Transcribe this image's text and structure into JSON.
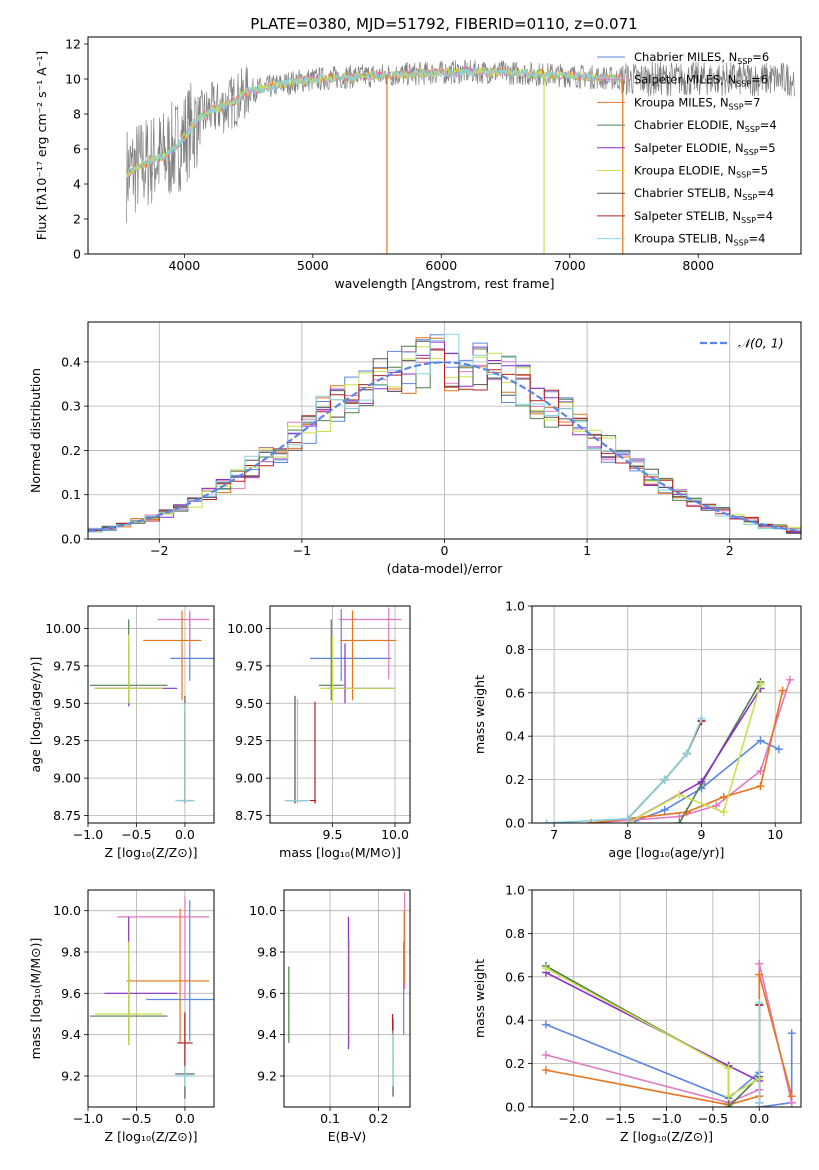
{
  "figure": {
    "title": "PLATE=0380, MJD=51792, FIBERID=0110, z=0.071"
  },
  "colors": {
    "Chabrier MILES": "#5b86e5",
    "Salpeter MILES": "#e377c2",
    "Kroupa MILES": "#e8731a",
    "Chabrier ELODIE": "#4f7f4f",
    "Salpeter ELODIE": "#8b2fc9",
    "Kroupa ELODIE": "#c9e04c",
    "Chabrier STELIB": "#555555",
    "Salpeter STELIB": "#b22222",
    "Kroupa STELIB": "#86d3de",
    "data": "#808080",
    "gaussian": "#5b86e5"
  },
  "chart_data": [
    {
      "id": "spectrum",
      "type": "line",
      "title": "PLATE=0380, MJD=51792, FIBERID=0110, z=0.071",
      "xlabel": "wavelength [Angstrom, rest frame]",
      "ylabel": "Flux [fλ10⁻¹⁷ erg cm⁻² s⁻¹ A⁻¹]",
      "xlim": [
        3250,
        8800
      ],
      "ylim": [
        0,
        12.4
      ],
      "xticks": [
        4000,
        5000,
        6000,
        7000,
        8000
      ],
      "yticks": [
        0,
        2,
        4,
        6,
        8,
        10,
        12
      ],
      "legend_position": "right",
      "legend": [
        {
          "label": "Chabrier MILES, N",
          "sub": "SSP",
          "suffix": "=6"
        },
        {
          "label": "Salpeter MILES, N",
          "sub": "SSP",
          "suffix": "=6"
        },
        {
          "label": "Kroupa MILES, N",
          "sub": "SSP",
          "suffix": "=7"
        },
        {
          "label": "Chabrier ELODIE, N",
          "sub": "SSP",
          "suffix": "=4"
        },
        {
          "label": "Salpeter ELODIE, N",
          "sub": "SSP",
          "suffix": "=5"
        },
        {
          "label": "Kroupa ELODIE, N",
          "sub": "SSP",
          "suffix": "=5"
        },
        {
          "label": "Chabrier STELIB, N",
          "sub": "SSP",
          "suffix": "=4"
        },
        {
          "label": "Salpeter STELIB, N",
          "sub": "SSP",
          "suffix": "=4"
        },
        {
          "label": "Kroupa STELIB, N",
          "sub": "SSP",
          "suffix": "=4"
        }
      ],
      "continuum": [
        [
          3550,
          4.6
        ],
        [
          3650,
          5.0
        ],
        [
          3750,
          5.4
        ],
        [
          3850,
          5.6
        ],
        [
          3950,
          6.2
        ],
        [
          4000,
          6.7
        ],
        [
          4100,
          7.6
        ],
        [
          4200,
          8.2
        ],
        [
          4300,
          8.4
        ],
        [
          4400,
          8.8
        ],
        [
          4500,
          9.3
        ],
        [
          4700,
          9.6
        ],
        [
          4900,
          9.9
        ],
        [
          5200,
          10.1
        ],
        [
          5500,
          10.2
        ],
        [
          5800,
          10.3
        ],
        [
          6100,
          10.4
        ],
        [
          6400,
          10.4
        ],
        [
          6700,
          10.3
        ],
        [
          7000,
          10.2
        ],
        [
          7200,
          10.1
        ],
        [
          7400,
          10.0
        ]
      ],
      "spikes": [
        [
          5577,
          0
        ],
        [
          7413,
          0
        ],
        [
          6800,
          0
        ]
      ]
    },
    {
      "id": "residuals",
      "type": "histogram",
      "xlabel": "(data-model)/error",
      "ylabel": "Normed distribution",
      "xlim": [
        -2.5,
        2.5
      ],
      "ylim": [
        0,
        0.49
      ],
      "xticks": [
        -2,
        -1,
        0,
        1,
        2
      ],
      "yticks": [
        0.0,
        0.1,
        0.2,
        0.3,
        0.4
      ],
      "legend_label": "𝒩(0, 1)",
      "legend_position": "top-right",
      "bin_width": 0.1,
      "bins_start": -2.5,
      "gaussian": {
        "mean": 0,
        "sigma": 1
      }
    },
    {
      "id": "age_vs_Z",
      "type": "errorbar",
      "xlabel": "Z [log₁₀(Z/Z⊙)]",
      "ylabel": "age  [log₁₀(age/yr)]",
      "xlim": [
        -1.0,
        0.3
      ],
      "ylim": [
        8.7,
        10.15
      ],
      "xticks": [
        -1.0,
        -0.5,
        0.0
      ],
      "yticks": [
        8.75,
        9.0,
        9.25,
        9.5,
        9.75,
        10.0
      ],
      "points": [
        {
          "model": "Chabrier MILES",
          "x": 0.05,
          "y": 9.8,
          "xerr": [
            0.2,
            0.25
          ],
          "yerr": [
            0.15,
            0.3
          ]
        },
        {
          "model": "Salpeter MILES",
          "x": 0.05,
          "y": 10.06,
          "xerr": [
            0.33,
            0.2
          ],
          "yerr": [
            0.2,
            0.06
          ]
        },
        {
          "model": "Kroupa MILES",
          "x": -0.03,
          "y": 9.92,
          "xerr": [
            0.4,
            0.2
          ],
          "yerr": [
            0.4,
            0.2
          ]
        },
        {
          "model": "Chabrier ELODIE",
          "x": -0.58,
          "y": 9.62,
          "xerr": [
            0.4,
            0.4
          ],
          "yerr": [
            0.12,
            0.44
          ]
        },
        {
          "model": "Salpeter ELODIE",
          "x": -0.58,
          "y": 9.6,
          "xerr": [
            0.35,
            0.5
          ],
          "yerr": [
            0.12,
            0.3
          ]
        },
        {
          "model": "Kroupa ELODIE",
          "x": -0.58,
          "y": 9.6,
          "xerr": [
            0.35,
            0.35
          ],
          "yerr": [
            0.1,
            0.36
          ]
        },
        {
          "model": "Chabrier STELIB",
          "x": 0.0,
          "y": 8.85,
          "xerr": [
            0.08,
            0.08
          ],
          "yerr": [
            0.02,
            0.7
          ]
        },
        {
          "model": "Salpeter STELIB",
          "x": 0.0,
          "y": 8.85,
          "xerr": [
            0.05,
            0.05
          ],
          "yerr": [
            0.02,
            0.6
          ]
        },
        {
          "model": "Kroupa STELIB",
          "x": 0.0,
          "y": 8.85,
          "xerr": [
            0.1,
            0.1
          ],
          "yerr": [
            0.02,
            0.65
          ]
        }
      ]
    },
    {
      "id": "age_vs_mass",
      "type": "errorbar",
      "xlabel": "mass [log₁₀(M/M⊙)]",
      "ylabel": "",
      "xlim": [
        9.0,
        10.12
      ],
      "ylim": [
        8.7,
        10.15
      ],
      "xticks": [
        9.5,
        10.0
      ],
      "yticks": [
        8.75,
        9.0,
        9.25,
        9.5,
        9.75,
        10.0
      ],
      "points": [
        {
          "model": "Chabrier MILES",
          "x": 9.57,
          "y": 9.8,
          "xerr": [
            0.25,
            0.4
          ],
          "yerr": [
            0.15,
            0.33
          ]
        },
        {
          "model": "Salpeter MILES",
          "x": 9.95,
          "y": 10.06,
          "xerr": [
            0.4,
            0.1
          ],
          "yerr": [
            0.4,
            0.08
          ]
        },
        {
          "model": "Kroupa MILES",
          "x": 9.66,
          "y": 9.92,
          "xerr": [
            0.1,
            0.35
          ],
          "yerr": [
            0.4,
            0.2
          ]
        },
        {
          "model": "Chabrier ELODIE",
          "x": 9.49,
          "y": 9.62,
          "xerr": [
            0.1,
            0.1
          ],
          "yerr": [
            0.1,
            0.44
          ]
        },
        {
          "model": "Salpeter ELODIE",
          "x": 9.6,
          "y": 9.6,
          "xerr": [
            0.15,
            0.4
          ],
          "yerr": [
            0.1,
            0.3
          ]
        },
        {
          "model": "Kroupa ELODIE",
          "x": 9.5,
          "y": 9.6,
          "xerr": [
            0.1,
            0.5
          ],
          "yerr": [
            0.1,
            0.35
          ]
        },
        {
          "model": "Chabrier STELIB",
          "x": 9.2,
          "y": 8.85,
          "xerr": [
            0.08,
            0.08
          ],
          "yerr": [
            0.02,
            0.7
          ]
        },
        {
          "model": "Salpeter STELIB",
          "x": 9.36,
          "y": 8.85,
          "xerr": [
            0.2,
            0.01
          ],
          "yerr": [
            0.02,
            0.66
          ]
        },
        {
          "model": "Kroupa STELIB",
          "x": 9.22,
          "y": 8.85,
          "xerr": [
            0.1,
            0.1
          ],
          "yerr": [
            0.02,
            0.68
          ]
        }
      ]
    },
    {
      "id": "mass_weight_vs_age",
      "type": "line",
      "xlabel": "age  [log₁₀(age/yr)]",
      "ylabel": "mass weight",
      "xlim": [
        6.7,
        10.35
      ],
      "ylim": [
        0,
        1.0
      ],
      "xticks": [
        7,
        8,
        9,
        10
      ],
      "yticks": [
        0.0,
        0.2,
        0.4,
        0.6,
        0.8,
        1.0
      ],
      "grid": true,
      "series": [
        {
          "model": "Chabrier MILES",
          "x": [
            8.1,
            8.5,
            9.0,
            9.8,
            10.05
          ],
          "y": [
            0.01,
            0.06,
            0.16,
            0.38,
            0.34
          ]
        },
        {
          "model": "Salpeter MILES",
          "x": [
            7.5,
            8.7,
            9.2,
            9.8,
            10.2
          ],
          "y": [
            0.0,
            0.03,
            0.08,
            0.24,
            0.66
          ]
        },
        {
          "model": "Kroupa MILES",
          "x": [
            7.5,
            8.0,
            8.8,
            9.3,
            9.8,
            10.1
          ],
          "y": [
            0.0,
            0.02,
            0.05,
            0.12,
            0.17,
            0.61
          ]
        },
        {
          "model": "Chabrier ELODIE",
          "x": [
            8.7,
            9.0,
            9.8
          ],
          "y": [
            0.0,
            0.18,
            0.65
          ]
        },
        {
          "model": "Salpeter ELODIE",
          "x": [
            8.0,
            9.0,
            9.8
          ],
          "y": [
            0.0,
            0.19,
            0.62
          ]
        },
        {
          "model": "Kroupa ELODIE",
          "x": [
            8.0,
            8.7,
            9.3,
            9.8
          ],
          "y": [
            0.0,
            0.13,
            0.05,
            0.64
          ]
        },
        {
          "model": "Chabrier STELIB",
          "x": [
            8.0,
            8.5,
            8.8,
            9.0
          ],
          "y": [
            0.02,
            0.2,
            0.32,
            0.47
          ]
        },
        {
          "model": "Salpeter STELIB",
          "x": [
            8.0,
            8.5,
            8.8,
            9.0
          ],
          "y": [
            0.02,
            0.2,
            0.32,
            0.47
          ]
        },
        {
          "model": "Kroupa STELIB",
          "x": [
            6.9,
            8.0,
            8.5,
            8.8,
            9.0
          ],
          "y": [
            0.0,
            0.02,
            0.2,
            0.32,
            0.48
          ]
        }
      ]
    },
    {
      "id": "mass_vs_Z",
      "type": "errorbar",
      "xlabel": "Z [log₁₀(Z/Z⊙)]",
      "ylabel": "mass [log₁₀(M/M⊙)]",
      "xlim": [
        -1.0,
        0.3
      ],
      "ylim": [
        9.05,
        10.1
      ],
      "xticks": [
        -1.0,
        -0.5,
        0.0
      ],
      "yticks": [
        9.2,
        9.4,
        9.6,
        9.8,
        10.0
      ],
      "points": [
        {
          "model": "Chabrier MILES",
          "x": 0.05,
          "y": 9.57,
          "xerr": [
            0.45,
            0.25
          ],
          "yerr": [
            0.2,
            0.48
          ]
        },
        {
          "model": "Salpeter MILES",
          "x": 0.0,
          "y": 9.97,
          "xerr": [
            0.7,
            0.25
          ],
          "yerr": [
            0.4,
            0.1
          ]
        },
        {
          "model": "Kroupa MILES",
          "x": -0.05,
          "y": 9.66,
          "xerr": [
            0.55,
            0.3
          ],
          "yerr": [
            0.3,
            0.35
          ]
        },
        {
          "model": "Chabrier ELODIE",
          "x": -0.58,
          "y": 9.49,
          "xerr": [
            0.4,
            0.4
          ],
          "yerr": [
            0.12,
            0.25
          ]
        },
        {
          "model": "Salpeter ELODIE",
          "x": -0.58,
          "y": 9.6,
          "xerr": [
            0.25,
            0.5
          ],
          "yerr": [
            0.25,
            0.37
          ]
        },
        {
          "model": "Kroupa ELODIE",
          "x": -0.58,
          "y": 9.5,
          "xerr": [
            0.35,
            0.35
          ],
          "yerr": [
            0.15,
            0.35
          ]
        },
        {
          "model": "Chabrier STELIB",
          "x": 0.0,
          "y": 9.21,
          "xerr": [
            0.1,
            0.1
          ],
          "yerr": [
            0.12,
            0.3
          ]
        },
        {
          "model": "Salpeter STELIB",
          "x": 0.0,
          "y": 9.36,
          "xerr": [
            0.08,
            0.08
          ],
          "yerr": [
            0.12,
            0.14
          ]
        },
        {
          "model": "Kroupa STELIB",
          "x": 0.0,
          "y": 9.2,
          "xerr": [
            0.1,
            0.1
          ],
          "yerr": [
            0.05,
            0.05
          ]
        }
      ]
    },
    {
      "id": "mass_vs_ebv",
      "type": "errorbar",
      "xlabel": "E(B-V)",
      "ylabel": "",
      "xlim": [
        0.005,
        0.265
      ],
      "ylim": [
        9.05,
        10.1
      ],
      "xticks": [
        0.1,
        0.2
      ],
      "yticks": [
        9.2,
        9.4,
        9.6,
        9.8,
        10.0
      ],
      "points": [
        {
          "model": "Chabrier MILES",
          "x": 0.252,
          "y": 9.57,
          "xerr": [
            0.001,
            0.001
          ],
          "yerr": [
            0.17,
            0.28
          ]
        },
        {
          "model": "Salpeter MILES",
          "x": 0.254,
          "y": 9.97,
          "xerr": [
            0.001,
            0.001
          ],
          "yerr": [
            0.35,
            0.12
          ]
        },
        {
          "model": "Kroupa MILES",
          "x": 0.253,
          "y": 9.7,
          "xerr": [
            0.001,
            0.001
          ],
          "yerr": [
            0.05,
            0.3
          ]
        },
        {
          "model": "Chabrier ELODIE",
          "x": 0.015,
          "y": 9.5,
          "xerr": [
            0.001,
            0.001
          ],
          "yerr": [
            0.14,
            0.23
          ]
        },
        {
          "model": "Salpeter ELODIE",
          "x": 0.138,
          "y": 9.6,
          "xerr": [
            0.001,
            0.001
          ],
          "yerr": [
            0.27,
            0.37
          ]
        },
        {
          "model": "Kroupa ELODIE",
          "x": 0.14,
          "y": 9.55,
          "xerr": [
            0.001,
            0.001
          ],
          "yerr": [
            0.2,
            0.31
          ]
        },
        {
          "model": "Chabrier STELIB",
          "x": 0.23,
          "y": 9.28,
          "xerr": [
            0.001,
            0.001
          ],
          "yerr": [
            0.18,
            0.2
          ]
        },
        {
          "model": "Salpeter STELIB",
          "x": 0.229,
          "y": 9.45,
          "xerr": [
            0.001,
            0.001
          ],
          "yerr": [
            0.05,
            0.05
          ]
        },
        {
          "model": "Kroupa STELIB",
          "x": 0.23,
          "y": 9.3,
          "xerr": [
            0.001,
            0.001
          ],
          "yerr": [
            0.15,
            0.12
          ]
        }
      ]
    },
    {
      "id": "mass_weight_vs_Z",
      "type": "line",
      "xlabel": "Z [log₁₀(Z/Z⊙)]",
      "ylabel": "mass weight",
      "xlim": [
        -2.45,
        0.45
      ],
      "ylim": [
        0,
        1.0
      ],
      "xticks": [
        -2.0,
        -1.5,
        -1.0,
        -0.5,
        0.0
      ],
      "yticks": [
        0.0,
        0.2,
        0.4,
        0.6,
        0.8,
        1.0
      ],
      "grid": true,
      "series": [
        {
          "model": "Chabrier MILES",
          "x": [
            -2.3,
            -0.33,
            0.0,
            0.0,
            0.35,
            0.35
          ],
          "y": [
            0.38,
            0.04,
            0.16,
            0.0,
            0.02,
            0.34
          ]
        },
        {
          "model": "Salpeter MILES",
          "x": [
            -2.3,
            -0.33,
            0.0,
            0.0,
            0.35
          ],
          "y": [
            0.24,
            0.02,
            0.08,
            0.66,
            0.02
          ]
        },
        {
          "model": "Kroupa MILES",
          "x": [
            -2.3,
            -0.33,
            0.0,
            0.0,
            0.35
          ],
          "y": [
            0.17,
            0.01,
            0.05,
            0.61,
            0.05
          ]
        },
        {
          "model": "Chabrier ELODIE",
          "x": [
            -2.3,
            -0.33,
            -0.33,
            0.0
          ],
          "y": [
            0.65,
            0.18,
            0.0,
            0.14
          ]
        },
        {
          "model": "Salpeter ELODIE",
          "x": [
            -2.3,
            -0.33,
            0.0
          ],
          "y": [
            0.62,
            0.19,
            0.12
          ]
        },
        {
          "model": "Kroupa ELODIE",
          "x": [
            -2.3,
            -0.33,
            -0.33,
            0.0
          ],
          "y": [
            0.64,
            0.18,
            0.05,
            0.13
          ]
        },
        {
          "model": "Chabrier STELIB",
          "x": [
            0.0,
            0.0
          ],
          "y": [
            0.02,
            0.47
          ]
        },
        {
          "model": "Salpeter STELIB",
          "x": [
            0.0,
            0.0
          ],
          "y": [
            0.02,
            0.47
          ]
        },
        {
          "model": "Kroupa STELIB",
          "x": [
            0.0,
            0.0
          ],
          "y": [
            0.02,
            0.48
          ]
        }
      ]
    }
  ]
}
